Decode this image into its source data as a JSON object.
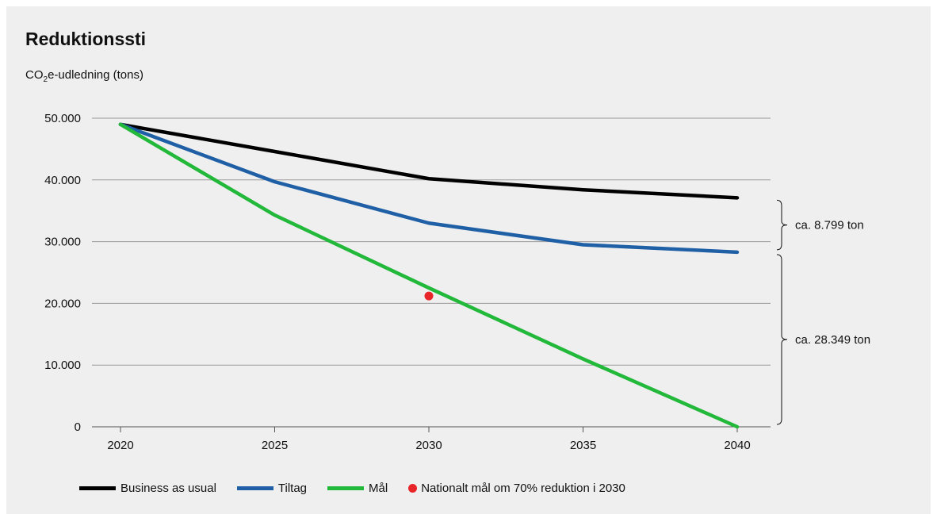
{
  "chart_data": {
    "type": "line",
    "title": "Reduktionssti",
    "ylabel_prefix": "CO",
    "ylabel_sub": "2",
    "ylabel_suffix": "e-udledning (tons)",
    "x": [
      2020,
      2025,
      2030,
      2035,
      2040
    ],
    "x_tick_labels": [
      "2020",
      "2025",
      "2030",
      "2035",
      "2040"
    ],
    "ylim": [
      0,
      50000
    ],
    "y_ticks": [
      0,
      10000,
      20000,
      30000,
      40000,
      50000
    ],
    "y_tick_labels": [
      "0",
      "10.000",
      "20.000",
      "30.000",
      "40.000",
      "50.000"
    ],
    "grid": "horizontal",
    "legend_position": "bottom",
    "series": [
      {
        "name": "Business as usual",
        "color": "#000000",
        "values": [
          49000,
          44600,
          40200,
          38400,
          37100
        ]
      },
      {
        "name": "Tiltag",
        "color": "#1f5fa5",
        "values": [
          49000,
          39700,
          33000,
          29500,
          28300
        ]
      },
      {
        "name": "Mål",
        "color": "#22b83a",
        "values": [
          49000,
          34300,
          22500,
          11000,
          0
        ]
      }
    ],
    "points": [
      {
        "name": "Nationalt mål om 70% reduktion i 2030",
        "color": "#e8262a",
        "x": 2030,
        "y": 21200
      }
    ],
    "annotations": [
      {
        "text": "ca. 8.799 ton",
        "from": 28300,
        "to": 37100
      },
      {
        "text": "ca. 28.349 ton",
        "from": 0,
        "to": 28300
      }
    ]
  }
}
